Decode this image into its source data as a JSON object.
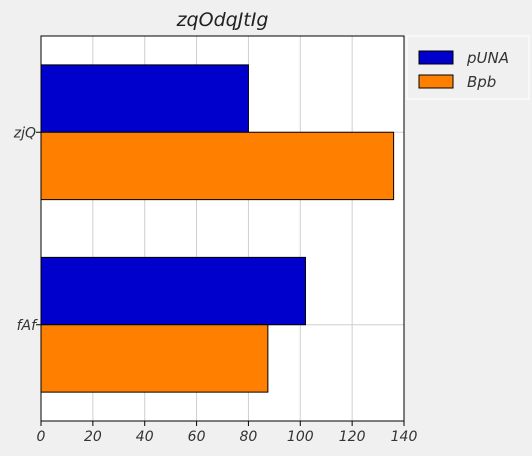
{
  "chart_data": {
    "type": "bar",
    "orientation": "horizontal",
    "title": "zqOdqJtIg",
    "xlabel": "",
    "ylabel": "",
    "categories": [
      "zjQ",
      "fAf"
    ],
    "series": [
      {
        "name": "pUNA",
        "values": [
          80,
          102
        ],
        "color": "#0000cc"
      },
      {
        "name": "Bpb",
        "values": [
          136,
          87.5
        ],
        "color": "#ff8000"
      }
    ],
    "xlim": [
      0,
      140
    ],
    "xticks": [
      0,
      20,
      40,
      60,
      80,
      100,
      120,
      140
    ],
    "grid": true,
    "legend_position": "top-right, outside plot"
  }
}
